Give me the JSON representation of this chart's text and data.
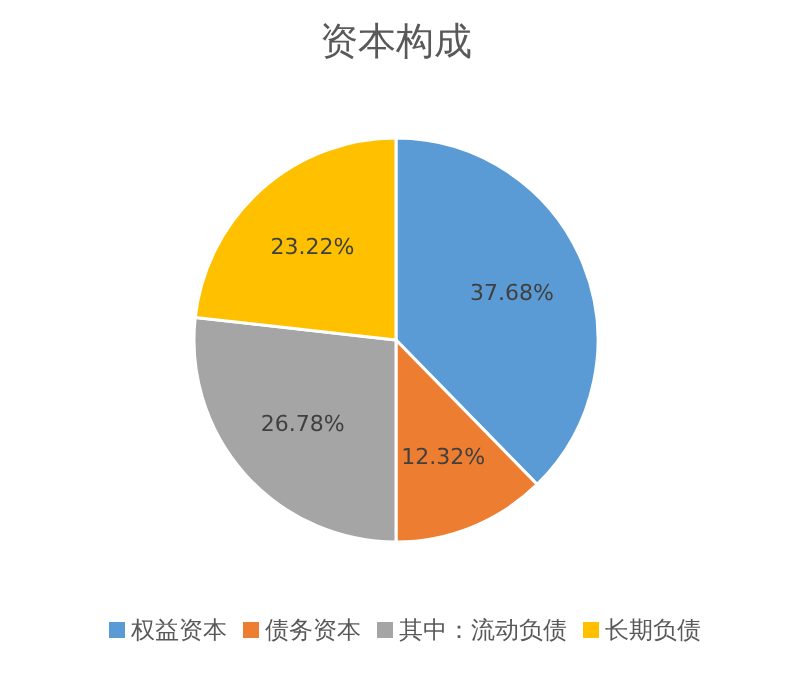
{
  "chart_data": {
    "type": "pie",
    "title": "资本构成",
    "categories": [
      "权益资本",
      "债务资本",
      "其中：流动负债",
      "长期负债"
    ],
    "values": [
      37.68,
      12.32,
      26.78,
      23.22
    ],
    "colors": [
      "#5b9bd5",
      "#ed7d31",
      "#a5a5a5",
      "#ffc000"
    ],
    "value_labels": [
      "37.68%",
      "12.32%",
      "26.78%",
      "23.22%"
    ],
    "legend": "bottom"
  }
}
